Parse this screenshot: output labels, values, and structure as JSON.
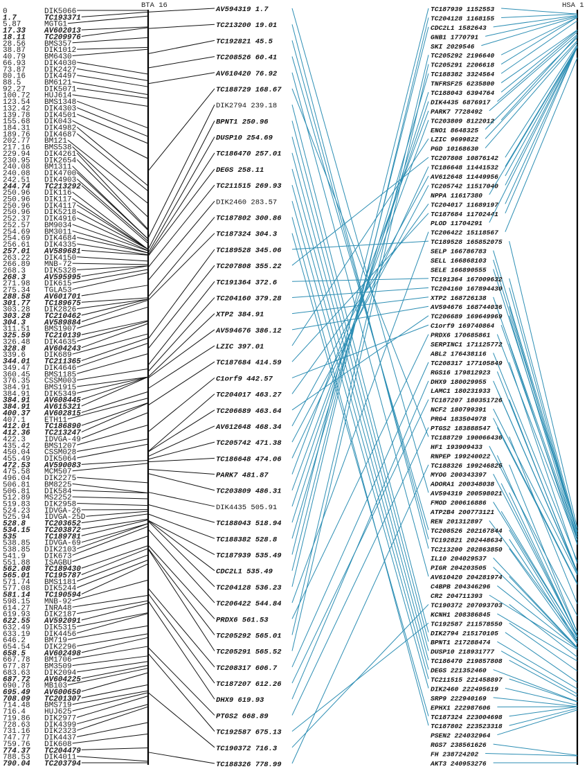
{
  "left_chromosome": {
    "label": "BTA 16"
  },
  "right_chromosome": {
    "label": "HSA 1"
  },
  "colors": {
    "axis": "#000000",
    "bta_links": "#111111",
    "homology_links": "#2b8db3"
  },
  "left_markers": [
    [
      "0",
      "DIK5066",
      0
    ],
    [
      "1.7",
      "TC193371",
      1
    ],
    [
      "5.87",
      "MGTG1",
      0
    ],
    [
      "17.33",
      "AV602013",
      1
    ],
    [
      "18.11",
      "TC209976",
      1
    ],
    [
      "28.56",
      "BMS357",
      0
    ],
    [
      "38.87",
      "DIK1012",
      0
    ],
    [
      "40.79",
      "BM6430",
      0
    ],
    [
      "66.93",
      "DIK4030",
      0
    ],
    [
      "73.87",
      "DIK2427",
      0
    ],
    [
      "80.16",
      "DIK4497",
      0
    ],
    [
      "88.5",
      "BM6121",
      0
    ],
    [
      "92.27",
      "DIK5071",
      0
    ],
    [
      "100.72",
      "HUJ614",
      0
    ],
    [
      "123.54",
      "BMS1348",
      0
    ],
    [
      "132.42",
      "DIK4303",
      0
    ],
    [
      "139.78",
      "DIK4501",
      0
    ],
    [
      "155.68",
      "DIK043",
      0
    ],
    [
      "184.31",
      "DIK4982",
      0
    ],
    [
      "189.76",
      "DIK4687",
      0
    ],
    [
      "202.77",
      "BM121",
      0
    ],
    [
      "217.16",
      "BMS538",
      0
    ],
    [
      "229.94",
      "DIK4261",
      0
    ],
    [
      "230.95",
      "DIK2654",
      0
    ],
    [
      "240.08",
      "BM1311",
      0
    ],
    [
      "240.08",
      "DIK4700",
      0
    ],
    [
      "242.51",
      "DIK4903",
      0
    ],
    [
      "244.74",
      "TC213292",
      1
    ],
    [
      "250.96",
      "DIK116",
      0
    ],
    [
      "250.96",
      "DIK117",
      0
    ],
    [
      "250.96",
      "DIK4117",
      0
    ],
    [
      "250.96",
      "DIK5218",
      0
    ],
    [
      "252.37",
      "DIK4916",
      0
    ],
    [
      "252.57",
      "BM9034",
      0
    ],
    [
      "254.69",
      "BM3011",
      0
    ],
    [
      "254.69",
      "DIK4684",
      0
    ],
    [
      "256.61",
      "DIK4335",
      0
    ],
    [
      "257.01",
      "AV589681",
      1
    ],
    [
      "263.22",
      "DIK4150",
      0
    ],
    [
      "266.89",
      "MNB-72",
      0
    ],
    [
      "268.3",
      "DIK5328",
      0
    ],
    [
      "268.3",
      "AV595995",
      1
    ],
    [
      "271.98",
      "DIK615",
      0
    ],
    [
      "275.34",
      "TGLA53",
      0
    ],
    [
      "288.58",
      "AV601701",
      1
    ],
    [
      "301.77",
      "TC189675",
      1
    ],
    [
      "303.28",
      "DIK2826",
      0
    ],
    [
      "303.28",
      "TC210462",
      1
    ],
    [
      "304.3",
      "AV589884",
      1
    ],
    [
      "311.51",
      "BMS1907",
      0
    ],
    [
      "325.59",
      "TC210139",
      1
    ],
    [
      "326.48",
      "DIK4635",
      0
    ],
    [
      "328.8",
      "AV604243",
      1
    ],
    [
      "339.6",
      "DIK689",
      0
    ],
    [
      "344.01",
      "TC211365",
      1
    ],
    [
      "349.47",
      "DIK4646",
      0
    ],
    [
      "360.45",
      "BMS1185",
      0
    ],
    [
      "376.35",
      "CSSM003",
      0
    ],
    [
      "384.91",
      "BMS1915",
      0
    ],
    [
      "384.91",
      "DIK5349",
      0
    ],
    [
      "384.91",
      "AV608445",
      1
    ],
    [
      "384.91",
      "AV615321",
      1
    ],
    [
      "400.37",
      "AV602815",
      1
    ],
    [
      "407.1",
      "ETH11",
      0
    ],
    [
      "412.01",
      "TC186890",
      1
    ],
    [
      "412.36",
      "TC213247",
      1
    ],
    [
      "422.3",
      "IDVGA-49",
      0
    ],
    [
      "435.42",
      "BMS1207",
      0
    ],
    [
      "450.04",
      "CSSM028",
      0
    ],
    [
      "455.49",
      "DIK5064",
      0
    ],
    [
      "472.53",
      "AV590083",
      1
    ],
    [
      "475.58",
      "MCM507",
      0
    ],
    [
      "496.04",
      "DIK2275",
      0
    ],
    [
      "506.81",
      "BM8225",
      0
    ],
    [
      "506.81",
      "DIK584",
      0
    ],
    [
      "512.89",
      "MS2252",
      0
    ],
    [
      "519.83",
      "DIK2958",
      0
    ],
    [
      "524.23",
      "IDVGA-26",
      0
    ],
    [
      "525.94",
      "IDVGA-25D",
      0
    ],
    [
      "528.8",
      "TC203652",
      1
    ],
    [
      "534.15",
      "TC203872",
      1
    ],
    [
      "535",
      "TC189781",
      1
    ],
    [
      "538.85",
      "IDVGA-69",
      0
    ],
    [
      "538.85",
      "DIK2103",
      0
    ],
    [
      "541.9",
      "DIK673",
      0
    ],
    [
      "551.88",
      "ISAGBU",
      0
    ],
    [
      "562.08",
      "TC189430",
      1
    ],
    [
      "565.01",
      "TC195787",
      1
    ],
    [
      "571.74",
      "BMS1181",
      0
    ],
    [
      "577.08",
      "DIK5244",
      0
    ],
    [
      "581.14",
      "TC190594",
      1
    ],
    [
      "598.15",
      "MNB-92",
      0
    ],
    [
      "614.27",
      "INRA48",
      0
    ],
    [
      "619.93",
      "DIK2187",
      0
    ],
    [
      "622.55",
      "AV592091",
      1
    ],
    [
      "632.49",
      "DIK5315",
      0
    ],
    [
      "633.19",
      "DIK4456",
      0
    ],
    [
      "646.2",
      "BM719",
      0
    ],
    [
      "654.54",
      "DIK2296",
      0
    ],
    [
      "658.5",
      "AV602498",
      1
    ],
    [
      "667.78",
      "BM1706",
      0
    ],
    [
      "677.87",
      "BM3509",
      0
    ],
    [
      "683.63",
      "DIK2094",
      0
    ],
    [
      "687.72",
      "AV604225",
      1
    ],
    [
      "690.78",
      "MB103",
      0
    ],
    [
      "695.49",
      "AV600650",
      1
    ],
    [
      "708.09",
      "TC201307",
      1
    ],
    [
      "714.48",
      "BMS719",
      0
    ],
    [
      "716.4",
      "HUJ625",
      0
    ],
    [
      "719.86",
      "DIK2977",
      0
    ],
    [
      "728.63",
      "DIK4399",
      0
    ],
    [
      "731.16",
      "DIK2323",
      0
    ],
    [
      "747.77",
      "DIK4437",
      0
    ],
    [
      "759.76",
      "DIK608",
      0
    ],
    [
      "774.37",
      "TC204479",
      1
    ],
    [
      "788.53",
      "DIK4011",
      0
    ],
    [
      "790.04",
      "TC203794",
      1
    ]
  ],
  "middle_markers": [
    [
      "AV594319",
      "1.7",
      1
    ],
    [
      "TC213200",
      "19.01",
      1
    ],
    [
      "TC192821",
      "45.5",
      1
    ],
    [
      "TC208526",
      "60.41",
      1
    ],
    [
      "AV610420",
      "76.92",
      1
    ],
    [
      "TC188729",
      "168.67",
      1
    ],
    [
      "DIK2794",
      "239.18",
      0
    ],
    [
      "BPNT1",
      "250.96",
      1
    ],
    [
      "DUSP10",
      "254.69",
      1
    ],
    [
      "TC186470",
      "257.01",
      1
    ],
    [
      "DEGS",
      "258.11",
      1
    ],
    [
      "TC211515",
      "269.93",
      1
    ],
    [
      "DIK2460",
      "283.57",
      0
    ],
    [
      "TC187802",
      "300.86",
      1
    ],
    [
      "TC187324",
      "304.3",
      1
    ],
    [
      "TC189528",
      "345.06",
      1
    ],
    [
      "TC207808",
      "355.22",
      1
    ],
    [
      "TC191364",
      "372.6",
      1
    ],
    [
      "TC204160",
      "379.28",
      1
    ],
    [
      "XTP2",
      "384.91",
      1
    ],
    [
      "AV594676",
      "386.12",
      1
    ],
    [
      "LZIC",
      "397.01",
      1
    ],
    [
      "TC187684",
      "414.59",
      1
    ],
    [
      "C1orf9",
      "442.57",
      1
    ],
    [
      "TC204017",
      "463.27",
      1
    ],
    [
      "TC206689",
      "463.64",
      1
    ],
    [
      "AV612648",
      "468.34",
      1
    ],
    [
      "TC205742",
      "471.38",
      1
    ],
    [
      "TC186648",
      "474.06",
      1
    ],
    [
      "PARK7",
      "481.87",
      1
    ],
    [
      "TC203809",
      "486.31",
      1
    ],
    [
      "DIK4435",
      "505.91",
      0
    ],
    [
      "TC188043",
      "518.94",
      1
    ],
    [
      "TC188382",
      "528.8",
      1
    ],
    [
      "TC187939",
      "535.49",
      1
    ],
    [
      "CDC2L1",
      "535.49",
      1
    ],
    [
      "TC204128",
      "536.23",
      1
    ],
    [
      "TC206422",
      "544.84",
      1
    ],
    [
      "PRDX6",
      "561.53",
      1
    ],
    [
      "TC205292",
      "565.01",
      1
    ],
    [
      "TC205291",
      "565.52",
      1
    ],
    [
      "TC208317",
      "606.7",
      1
    ],
    [
      "TC187207",
      "612.26",
      1
    ],
    [
      "DHX9",
      "619.93",
      1
    ],
    [
      "PTGS2",
      "668.89",
      1
    ],
    [
      "TC192587",
      "675.13",
      1
    ],
    [
      "TC190372",
      "716.3",
      1
    ],
    [
      "TC188326",
      "778.99",
      1
    ]
  ],
  "right_markers": [
    [
      "TC187939",
      "1152553"
    ],
    [
      "TC204128",
      "1168155"
    ],
    [
      "CDC2L1",
      "1582643"
    ],
    [
      "GNB1",
      "1770791"
    ],
    [
      "SKI",
      "2029546"
    ],
    [
      "TC205292",
      "2196640"
    ],
    [
      "TC205291",
      "2206618"
    ],
    [
      "TC188382",
      "3324564"
    ],
    [
      "TNFRSF25",
      "6235800"
    ],
    [
      "TC188043",
      "6394764"
    ],
    [
      "DIK4435",
      "6876917"
    ],
    [
      "PARK7",
      "7728492"
    ],
    [
      "TC203809",
      "8122012"
    ],
    [
      "ENO1",
      "8648325"
    ],
    [
      "LZIC",
      "9699822"
    ],
    [
      "PGD",
      "10168630"
    ],
    [
      "TC207808",
      "10876142"
    ],
    [
      "TC186648",
      "11441532"
    ],
    [
      "AV612648",
      "11449956"
    ],
    [
      "TC205742",
      "11517040"
    ],
    [
      "NPPA",
      "11617380"
    ],
    [
      "TC204017",
      "11689197"
    ],
    [
      "TC187684",
      "11702441"
    ],
    [
      "PLOD",
      "11704291"
    ],
    [
      "TC206422",
      "15118567"
    ],
    [
      "TC189528",
      "165852075"
    ],
    [
      "SELP",
      "166786783"
    ],
    [
      "SELL",
      "166868103"
    ],
    [
      "SELE",
      "166890555"
    ],
    [
      "TC191364",
      "167009632"
    ],
    [
      "TC204160",
      "167894430"
    ],
    [
      "XTP2",
      "168726138"
    ],
    [
      "AV594676",
      "168744036"
    ],
    [
      "TC206689",
      "169649969"
    ],
    [
      "C1orf9",
      "169740864"
    ],
    [
      "PRDX6",
      "170685861"
    ],
    [
      "SERPINC1",
      "171125772"
    ],
    [
      "ABL2",
      "176438116"
    ],
    [
      "TC208317",
      "177105849"
    ],
    [
      "RGS16",
      "179812923"
    ],
    [
      "DHX9",
      "180029955"
    ],
    [
      "LAMC1",
      "180231933"
    ],
    [
      "TC187207",
      "180351726"
    ],
    [
      "NCF2",
      "180799391"
    ],
    [
      "PRG4",
      "183504978"
    ],
    [
      "PTGS2",
      "183888547"
    ],
    [
      "TC188729",
      "190066436"
    ],
    [
      "HF1",
      "193909433"
    ],
    [
      "RNPEP",
      "199240022"
    ],
    [
      "TC188326",
      "199246825"
    ],
    [
      "MYOG",
      "200343397"
    ],
    [
      "ADORA1",
      "200348038"
    ],
    [
      "AV594319",
      "200598021"
    ],
    [
      "FMOD",
      "200616886"
    ],
    [
      "ATP2B4",
      "200773121"
    ],
    [
      "REN",
      "201312897"
    ],
    [
      "TC208526",
      "202167844"
    ],
    [
      "TC192821",
      "202448634"
    ],
    [
      "TC213200",
      "202863850"
    ],
    [
      "IL10",
      "204029537"
    ],
    [
      "PIGR",
      "204203505"
    ],
    [
      "AV610420",
      "204281974"
    ],
    [
      "C4BPB",
      "204346296"
    ],
    [
      "CR2",
      "204711393"
    ],
    [
      "TC190372",
      "207093703"
    ],
    [
      "KCNH1",
      "208386845"
    ],
    [
      "TC192587",
      "211578550"
    ],
    [
      "DIK2794",
      "215170105"
    ],
    [
      "BPNT1",
      "217288474"
    ],
    [
      "DUSP10",
      "218931777"
    ],
    [
      "TC186470",
      "219857808"
    ],
    [
      "DEGS",
      "221352460"
    ],
    [
      "TC211515",
      "221458897"
    ],
    [
      "DIK2460",
      "222495619"
    ],
    [
      "SRP9",
      "222940169"
    ],
    [
      "EPHX1",
      "222987606"
    ],
    [
      "TC187324",
      "223004698"
    ],
    [
      "TC187802",
      "223523318"
    ],
    [
      "PSEN2",
      "224032964"
    ],
    [
      "RGS7",
      "238561626"
    ],
    [
      "FH",
      "238724202"
    ],
    [
      "AKT3",
      "240953276"
    ]
  ]
}
